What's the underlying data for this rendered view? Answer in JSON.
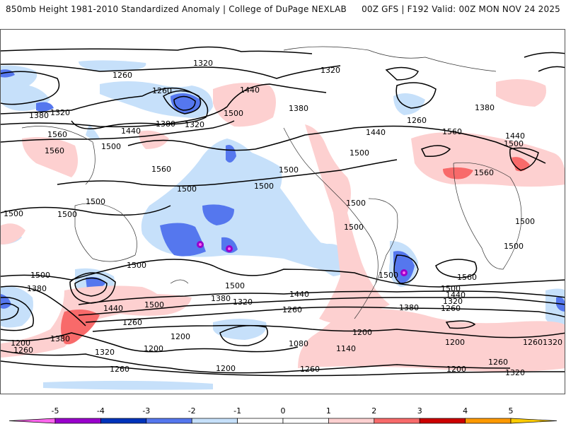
{
  "header": {
    "title": "850mb Height 1981-2010 Standardized Anomaly | College of DuPage NEXLAB",
    "run_info": "00Z GFS | F192 Valid: 00Z MON NOV 24 2025"
  },
  "map": {
    "variable": "850mb geopotential height (contours) and standardized anomaly (shading)",
    "contour_labels": [
      {
        "text": "1320",
        "region": "arctic-siberia"
      },
      {
        "text": "1260",
        "region": "north-europe-asia"
      },
      {
        "text": "1380",
        "region": "west-siberia"
      },
      {
        "text": "1320",
        "region": "west-siberia"
      },
      {
        "text": "1260",
        "region": "kamchatka"
      },
      {
        "text": "1380",
        "region": "north-pacific"
      },
      {
        "text": "1320",
        "region": "north-pacific"
      },
      {
        "text": "1440",
        "region": "alaska"
      },
      {
        "text": "1500",
        "region": "gulf-of-alaska"
      },
      {
        "text": "1440",
        "region": "japan"
      },
      {
        "text": "1560",
        "region": "tibet"
      },
      {
        "text": "1560",
        "region": "tibet-south"
      },
      {
        "text": "1500",
        "region": "east-china"
      },
      {
        "text": "1560",
        "region": "central-pacific"
      },
      {
        "text": "1500",
        "region": "tropical-pacific-west"
      },
      {
        "text": "1500",
        "region": "tropical-pacific-east"
      },
      {
        "text": "1500",
        "region": "indonesia"
      },
      {
        "text": "1500",
        "region": "india"
      },
      {
        "text": "1320",
        "region": "canada-arctic"
      },
      {
        "text": "1380",
        "region": "canada"
      },
      {
        "text": "1260",
        "region": "labrador-sea"
      },
      {
        "text": "1440",
        "region": "north-atlantic"
      },
      {
        "text": "1500",
        "region": "us-east-coast"
      },
      {
        "text": "1500",
        "region": "mexico"
      },
      {
        "text": "1560",
        "region": "subtropical-atlantic"
      },
      {
        "text": "1380",
        "region": "europe"
      },
      {
        "text": "1440",
        "region": "east-europe"
      },
      {
        "text": "1500",
        "region": "east-europe"
      },
      {
        "text": "1560",
        "region": "sahara"
      },
      {
        "text": "1500",
        "region": "colombia"
      },
      {
        "text": "1500",
        "region": "peru"
      },
      {
        "text": "1500",
        "region": "east-africa"
      },
      {
        "text": "1500",
        "region": "south-africa"
      },
      {
        "text": "1500",
        "region": "south-atlantic"
      },
      {
        "text": "1560",
        "region": "south-atlantic"
      },
      {
        "text": "1500",
        "region": "south-atlantic-band"
      },
      {
        "text": "1440",
        "region": "south-atlantic-band"
      },
      {
        "text": "1320",
        "region": "south-atlantic-band"
      },
      {
        "text": "1260",
        "region": "south-atlantic-band"
      },
      {
        "text": "1500",
        "region": "south-indian-ocean"
      },
      {
        "text": "1380",
        "region": "south-indian-ocean"
      },
      {
        "text": "1500",
        "region": "australia"
      },
      {
        "text": "1500",
        "region": "west-australia"
      },
      {
        "text": "1440",
        "region": "tasman-sea"
      },
      {
        "text": "1500",
        "region": "new-zealand"
      },
      {
        "text": "1500",
        "region": "south-pacific"
      },
      {
        "text": "1380",
        "region": "south-pacific"
      },
      {
        "text": "1320",
        "region": "south-pacific"
      },
      {
        "text": "1440",
        "region": "south-pacific-east"
      },
      {
        "text": "1260",
        "region": "southern-ocean-pacific"
      },
      {
        "text": "1380",
        "region": "drake-passage"
      },
      {
        "text": "1260",
        "region": "southern-ocean"
      },
      {
        "text": "1200",
        "region": "southern-ocean"
      },
      {
        "text": "1200",
        "region": "ross-sea"
      },
      {
        "text": "1200",
        "region": "antarctica-pacific"
      },
      {
        "text": "1200",
        "region": "weddell-sea"
      },
      {
        "text": "1080",
        "region": "amundsen-sea"
      },
      {
        "text": "1140",
        "region": "antarctic-peninsula"
      },
      {
        "text": "1200",
        "region": "east-antarctica"
      },
      {
        "text": "1260",
        "region": "east-antarctica"
      },
      {
        "text": "1320",
        "region": "east-antarctica"
      },
      {
        "text": "1260",
        "region": "antarctica-atlantic"
      },
      {
        "text": "1260",
        "region": "antarctica-south-atlantic"
      },
      {
        "text": "1320",
        "region": "antarctica-south-indian"
      },
      {
        "text": "1200",
        "region": "southern-indian"
      },
      {
        "text": "1260",
        "region": "southern-indian"
      },
      {
        "text": "1380",
        "region": "southern-indian"
      },
      {
        "text": "1320",
        "region": "antarctica-indian"
      },
      {
        "text": "1260",
        "region": "antarctica-indian"
      },
      {
        "text": "1200",
        "region": "antarctica-indian-east"
      }
    ]
  },
  "colorbar": {
    "ticks": [
      "-5",
      "-4",
      "-3",
      "-2",
      "-1",
      "0",
      "1",
      "2",
      "3",
      "4",
      "5"
    ],
    "bins": [
      {
        "range": "< -5",
        "color": "#ff66ee"
      },
      {
        "range": "-5 to -4",
        "color": "#9900cc"
      },
      {
        "range": "-4 to -3",
        "color": "#0033bb"
      },
      {
        "range": "-3 to -2",
        "color": "#5577ee"
      },
      {
        "range": "-2 to -1",
        "color": "#c6e0fa"
      },
      {
        "range": "-1 to 0",
        "color": "#ffffff"
      },
      {
        "range": "0 to 1",
        "color": "#ffffff"
      },
      {
        "range": "1 to 2",
        "color": "#fdd0d0"
      },
      {
        "range": "2 to 3",
        "color": "#f86a6a"
      },
      {
        "range": "3 to 4",
        "color": "#cc0000"
      },
      {
        "range": "4 to 5",
        "color": "#ff9900"
      },
      {
        "range": "> 5",
        "color": "#ffcc00"
      }
    ]
  }
}
